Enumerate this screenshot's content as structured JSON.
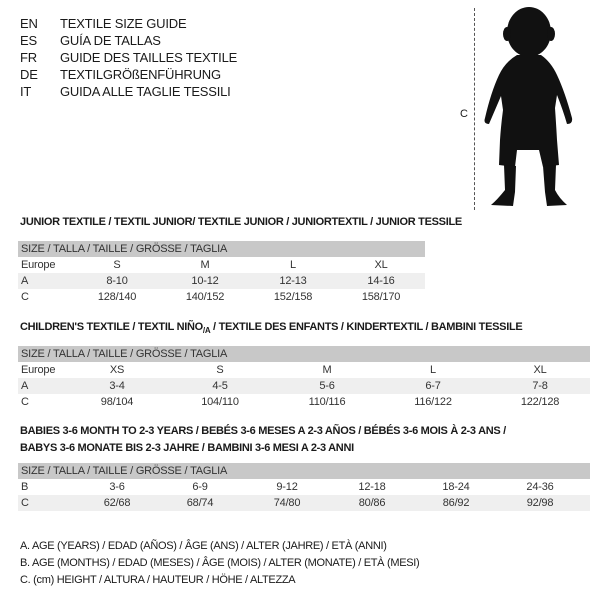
{
  "languages": [
    {
      "code": "EN",
      "text": "TEXTILE SIZE GUIDE"
    },
    {
      "code": "ES",
      "text": "GUÍA DE TALLAS"
    },
    {
      "code": "FR",
      "text": "GUIDE DES TAILLES TEXTILE"
    },
    {
      "code": "DE",
      "text": "TEXTILGRÖßENFÜHRUNG"
    },
    {
      "code": "IT",
      "text": "GUIDA ALLE TAGLIE TESSILI"
    }
  ],
  "figure": {
    "label": "C",
    "icon": "child-silhouette"
  },
  "junior": {
    "title": "JUNIOR TEXTILE / TEXTIL JUNIOR/ TEXTILE JUNIOR / JUNIORTEXTIL / JUNIOR TESSILE",
    "header": "SIZE / TALLA / TAILLE / GRÖSSE / TAGLIA",
    "rows": [
      {
        "label": "Europe",
        "cells": [
          "S",
          "M",
          "L",
          "XL"
        ]
      },
      {
        "label": "A",
        "cells": [
          "8-10",
          "10-12",
          "12-13",
          "14-16"
        ]
      },
      {
        "label": "C",
        "cells": [
          "128/140",
          "140/152",
          "152/158",
          "158/170"
        ]
      }
    ]
  },
  "children": {
    "title_pre": "CHILDREN'S TEXTILE / TEXTIL NIÑO",
    "title_sub": "/A",
    "title_post": " / TEXTILE DES ENFANTS / KINDERTEXTIL / BAMBINI TESSILE",
    "header": "SIZE / TALLA / TAILLE / GRÖSSE / TAGLIA",
    "rows": [
      {
        "label": "Europe",
        "cells": [
          "XS",
          "S",
          "M",
          "L",
          "XL"
        ]
      },
      {
        "label": "A",
        "cells": [
          "3-4",
          "4-5",
          "5-6",
          "6-7",
          "7-8"
        ]
      },
      {
        "label": "C",
        "cells": [
          "98/104",
          "104/110",
          "110/116",
          "116/122",
          "122/128"
        ]
      }
    ]
  },
  "babies": {
    "title_line1": "BABIES 3-6 MONTH TO 2-3 YEARS / BEBÉS 3-6 MESES A 2-3 AÑOS / BÉBÉS 3-6 MOIS À 2-3 ANS /",
    "title_line2": "BABYS 3-6 MONATE BIS 2-3 JAHRE / BAMBINI 3-6 MESI A 2-3 ANNI",
    "header": "SIZE / TALLA / TAILLE / GRÖSSE / TAGLIA",
    "rows": [
      {
        "label": "B",
        "cells": [
          "3-6",
          "6-9",
          "9-12",
          "12-18",
          "18-24",
          "24-36"
        ]
      },
      {
        "label": "C",
        "cells": [
          "62/68",
          "68/74",
          "74/80",
          "80/86",
          "86/92",
          "92/98"
        ]
      }
    ]
  },
  "legend": [
    "A. AGE (YEARS) / EDAD (AÑOS) / ÂGE (ANS) / ALTER (JAHRE) / ETÀ (ANNI)",
    "B. AGE (MONTHS) / EDAD (MESES) / ÂGE (MOIS) / ALTER (MONATE) / ETÀ (MESI)",
    "C. (cm) HEIGHT / ALTURA / HAUTEUR / HÖHE / ALTEZZA"
  ]
}
